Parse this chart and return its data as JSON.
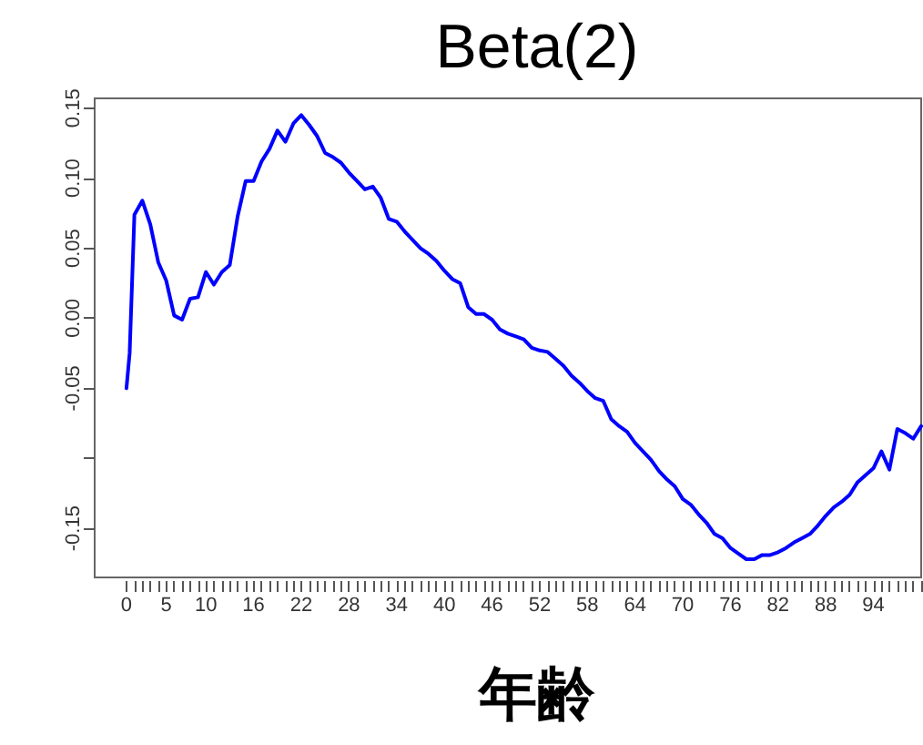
{
  "chart_data": {
    "type": "line",
    "title": "Beta(2)",
    "xlabel": "年齢",
    "x": [
      0,
      0.4,
      1,
      2,
      3,
      4,
      5,
      6,
      7,
      8,
      9,
      10,
      11,
      12,
      13,
      14,
      15,
      16,
      17,
      18,
      19,
      20,
      21,
      22,
      23,
      24,
      25,
      26,
      27,
      28,
      29,
      30,
      31,
      32,
      33,
      34,
      35,
      36,
      37,
      38,
      39,
      40,
      41,
      42,
      43,
      44,
      45,
      46,
      47,
      48,
      49,
      50,
      51,
      52,
      53,
      54,
      55,
      56,
      57,
      58,
      59,
      60,
      61,
      62,
      63,
      64,
      65,
      66,
      67,
      68,
      69,
      70,
      71,
      72,
      73,
      74,
      75,
      76,
      77,
      78,
      79,
      80,
      81,
      82,
      83,
      84,
      85,
      86,
      87,
      88,
      89,
      90,
      91,
      92,
      93,
      94,
      95,
      96,
      97,
      98,
      99,
      100
    ],
    "series": [
      {
        "color": "#0000ff",
        "values": [
          -0.05,
          -0.025,
          0.074,
          0.084,
          0.067,
          0.04,
          0.027,
          0.002,
          -0.001,
          0.014,
          0.015,
          0.033,
          0.024,
          0.033,
          0.038,
          0.073,
          0.098,
          0.098,
          0.112,
          0.121,
          0.134,
          0.126,
          0.139,
          0.145,
          0.138,
          0.13,
          0.118,
          0.115,
          0.111,
          0.104,
          0.098,
          0.092,
          0.094,
          0.086,
          0.071,
          0.069,
          0.062,
          0.056,
          0.05,
          0.046,
          0.041,
          0.034,
          0.028,
          0.025,
          0.008,
          0.003,
          0.003,
          -0.001,
          -0.008,
          -0.011,
          -0.013,
          -0.015,
          -0.021,
          -0.023,
          -0.024,
          -0.029,
          -0.034,
          -0.041,
          -0.046,
          -0.052,
          -0.057,
          -0.059,
          -0.072,
          -0.077,
          -0.081,
          -0.089,
          -0.095,
          -0.101,
          -0.109,
          -0.115,
          -0.12,
          -0.129,
          -0.133,
          -0.14,
          -0.146,
          -0.154,
          -0.157,
          -0.164,
          -0.168,
          -0.172,
          -0.172,
          -0.169,
          -0.169,
          -0.167,
          -0.164,
          -0.16,
          -0.157,
          -0.154,
          -0.148,
          -0.141,
          -0.135,
          -0.131,
          -0.126,
          -0.117,
          -0.112,
          -0.107,
          -0.095,
          -0.108,
          -0.079,
          -0.082,
          -0.086,
          -0.077
        ]
      }
    ],
    "xlim": [
      -4,
      100
    ],
    "xticks": [
      0,
      {
        "value": 1,
        "label": null
      },
      {
        "value": 2,
        "label": null
      },
      {
        "value": 3,
        "label": null
      },
      {
        "value": 4,
        "label": null
      },
      5,
      {
        "value": 6,
        "label": null
      },
      {
        "value": 7,
        "label": null
      },
      {
        "value": 8,
        "label": null
      },
      {
        "value": 9,
        "label": null
      },
      10,
      {
        "value": 11,
        "label": null
      },
      {
        "value": 12,
        "label": null
      },
      {
        "value": 13,
        "label": null
      },
      {
        "value": 14,
        "label": null
      },
      {
        "value": 15,
        "label": null
      },
      16,
      {
        "value": 17,
        "label": null
      },
      {
        "value": 18,
        "label": null
      },
      {
        "value": 19,
        "label": null
      },
      {
        "value": 20,
        "label": null
      },
      {
        "value": 21,
        "label": null
      },
      22,
      {
        "value": 23,
        "label": null
      },
      {
        "value": 24,
        "label": null
      },
      {
        "value": 25,
        "label": null
      },
      {
        "value": 26,
        "label": null
      },
      {
        "value": 27,
        "label": null
      },
      28,
      {
        "value": 29,
        "label": null
      },
      {
        "value": 30,
        "label": null
      },
      {
        "value": 31,
        "label": null
      },
      {
        "value": 32,
        "label": null
      },
      {
        "value": 33,
        "label": null
      },
      34,
      {
        "value": 35,
        "label": null
      },
      {
        "value": 36,
        "label": null
      },
      {
        "value": 37,
        "label": null
      },
      {
        "value": 38,
        "label": null
      },
      {
        "value": 39,
        "label": null
      },
      40,
      {
        "value": 41,
        "label": null
      },
      {
        "value": 42,
        "label": null
      },
      {
        "value": 43,
        "label": null
      },
      {
        "value": 44,
        "label": null
      },
      {
        "value": 45,
        "label": null
      },
      46,
      {
        "value": 47,
        "label": null
      },
      {
        "value": 48,
        "label": null
      },
      {
        "value": 49,
        "label": null
      },
      {
        "value": 50,
        "label": null
      },
      {
        "value": 51,
        "label": null
      },
      52,
      {
        "value": 53,
        "label": null
      },
      {
        "value": 54,
        "label": null
      },
      {
        "value": 55,
        "label": null
      },
      {
        "value": 56,
        "label": null
      },
      {
        "value": 57,
        "label": null
      },
      58,
      {
        "value": 59,
        "label": null
      },
      {
        "value": 60,
        "label": null
      },
      {
        "value": 61,
        "label": null
      },
      {
        "value": 62,
        "label": null
      },
      {
        "value": 63,
        "label": null
      },
      64,
      {
        "value": 65,
        "label": null
      },
      {
        "value": 66,
        "label": null
      },
      {
        "value": 67,
        "label": null
      },
      {
        "value": 68,
        "label": null
      },
      {
        "value": 69,
        "label": null
      },
      70,
      {
        "value": 71,
        "label": null
      },
      {
        "value": 72,
        "label": null
      },
      {
        "value": 73,
        "label": null
      },
      {
        "value": 74,
        "label": null
      },
      {
        "value": 75,
        "label": null
      },
      76,
      {
        "value": 77,
        "label": null
      },
      {
        "value": 78,
        "label": null
      },
      {
        "value": 79,
        "label": null
      },
      {
        "value": 80,
        "label": null
      },
      {
        "value": 81,
        "label": null
      },
      82,
      {
        "value": 83,
        "label": null
      },
      {
        "value": 84,
        "label": null
      },
      {
        "value": 85,
        "label": null
      },
      {
        "value": 86,
        "label": null
      },
      {
        "value": 87,
        "label": null
      },
      88,
      {
        "value": 89,
        "label": null
      },
      {
        "value": 90,
        "label": null
      },
      {
        "value": 91,
        "label": null
      },
      {
        "value": 92,
        "label": null
      },
      {
        "value": 93,
        "label": null
      },
      94,
      {
        "value": 95,
        "label": null
      },
      {
        "value": 96,
        "label": null
      },
      {
        "value": 97,
        "label": null
      },
      {
        "value": 98,
        "label": null
      },
      {
        "value": 99,
        "label": null
      },
      {
        "value": 100,
        "label": null
      }
    ],
    "ylim": [
      -0.185,
      0.157
    ],
    "yticks": [
      -0.15,
      {
        "value": -0.1,
        "label": null
      },
      -0.05,
      {
        "value": 0,
        "label": "0.00"
      },
      0.05,
      {
        "value": 0.1,
        "label": "0.10"
      },
      0.15
    ],
    "marker": "none",
    "line_style": "solid"
  }
}
